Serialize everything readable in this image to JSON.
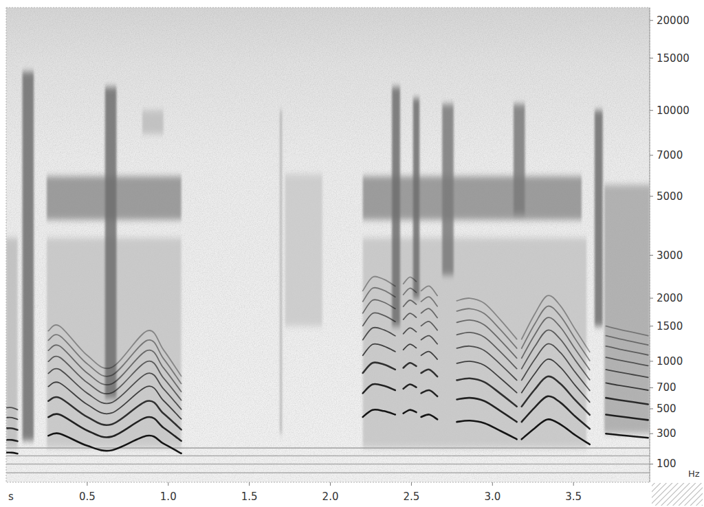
{
  "chart_data": {
    "type": "spectrogram",
    "xlabel": "s",
    "ylabel": "Hz",
    "xlim": [
      0,
      3.97
    ],
    "ylim": [
      0,
      22050
    ],
    "xticks": [
      0.5,
      {
        "value": 1,
        "label": "1.0"
      },
      1.5,
      {
        "value": 2,
        "label": "2.0"
      },
      2.5,
      {
        "value": 3,
        "label": "3.0"
      },
      3.5
    ],
    "yticks": [
      100,
      300,
      500,
      700,
      1000,
      1500,
      2000,
      3000,
      5000,
      7000,
      10000,
      15000,
      20000
    ],
    "color": "#000000",
    "tones": {
      "values": [
        50,
        100,
        150,
        200
      ],
      "color": "#9a9a9a"
    },
    "bursts": {
      "start": [
        0.0,
        0.1,
        0.25,
        0.25,
        0.61,
        0.84,
        1.72,
        1.69,
        2.2,
        2.2,
        2.38,
        2.51,
        2.69,
        3.13,
        3.63,
        3.69
      ],
      "end": [
        0.07,
        0.17,
        1.08,
        1.08,
        0.68,
        0.97,
        1.95,
        1.7,
        3.58,
        3.55,
        2.43,
        2.55,
        2.76,
        3.2,
        3.68,
        3.97
      ],
      "low": [
        200,
        250,
        200,
        4100,
        600,
        8300,
        1500,
        300,
        200,
        4100,
        1500,
        2000,
        2500,
        4300,
        1500,
        300
      ],
      "high": [
        3500,
        13500,
        3500,
        5900,
        12000,
        10000,
        6000,
        10000,
        3500,
        5900,
        12000,
        11000,
        10500,
        10500,
        10000,
        5500
      ],
      "colors": [
        "#bdbdbd",
        "#6e6e6e",
        "#c4c4c4",
        "#8f8f8f",
        "#6e6e6e",
        "#bdbdbd",
        "#c9c9c9",
        "#a0a0a0",
        "#c4c4c4",
        "#8f8f8f",
        "#6e6e6e",
        "#6e6e6e",
        "#7a7a7a",
        "#7a7a7a",
        "#6e6e6e",
        "#a8a8a8"
      ]
    },
    "segments": [
      {
        "x": [
          0.0,
          0.035,
          0.07
        ],
        "harmonics": [
          [
            170,
            170,
            164
          ],
          [
            255,
            255,
            246
          ],
          [
            340,
            340,
            328
          ],
          [
            425,
            425,
            410
          ],
          [
            510,
            510,
            492
          ]
        ]
      },
      {
        "x": [
          0.26,
          0.33,
          0.5,
          0.65,
          0.87,
          0.97,
          1.08
        ],
        "harmonics": [
          [
            285,
            300,
            215,
            185,
            285,
            230,
            165
          ],
          [
            428,
            450,
            323,
            278,
            428,
            345,
            248
          ],
          [
            570,
            600,
            430,
            370,
            570,
            460,
            330
          ],
          [
            713,
            750,
            538,
            463,
            713,
            575,
            413
          ],
          [
            855,
            900,
            645,
            555,
            855,
            690,
            495
          ],
          [
            998,
            1050,
            753,
            648,
            998,
            805,
            578
          ],
          [
            1140,
            1200,
            860,
            740,
            1140,
            920,
            660
          ],
          [
            1283,
            1350,
            968,
            833,
            1283,
            1035,
            743
          ],
          [
            1425,
            1500,
            1075,
            925,
            1425,
            1150,
            825
          ]
        ]
      },
      {
        "x": [
          2.2,
          2.26,
          2.33,
          2.4
        ],
        "harmonics": [
          [
            430,
            490,
            480,
            450
          ],
          [
            645,
            735,
            720,
            675
          ],
          [
            860,
            980,
            960,
            900
          ],
          [
            1075,
            1225,
            1200,
            1125
          ],
          [
            1290,
            1470,
            1440,
            1350
          ],
          [
            1505,
            1715,
            1680,
            1575
          ],
          [
            1720,
            1960,
            1920,
            1800
          ],
          [
            1935,
            2205,
            2160,
            2025
          ],
          [
            2150,
            2450,
            2400,
            2250
          ]
        ]
      },
      {
        "x": [
          2.45,
          2.49,
          2.53
        ],
        "harmonics": [
          [
            460,
            490,
            470
          ],
          [
            690,
            735,
            705
          ],
          [
            920,
            980,
            940
          ],
          [
            1150,
            1225,
            1175
          ],
          [
            1380,
            1470,
            1410
          ],
          [
            1610,
            1715,
            1645
          ],
          [
            1840,
            1960,
            1880
          ],
          [
            2070,
            2205,
            2115
          ],
          [
            2300,
            2450,
            2350
          ]
        ]
      },
      {
        "x": [
          2.56,
          2.61,
          2.66
        ],
        "harmonics": [
          [
            430,
            450,
            410
          ],
          [
            645,
            675,
            615
          ],
          [
            860,
            900,
            820
          ],
          [
            1075,
            1125,
            1025
          ],
          [
            1290,
            1350,
            1230
          ],
          [
            1505,
            1575,
            1435
          ],
          [
            1720,
            1800,
            1640
          ],
          [
            1935,
            2025,
            1845
          ],
          [
            2150,
            2250,
            2050
          ]
        ]
      },
      {
        "x": [
          2.78,
          2.86,
          2.95,
          3.05,
          3.15
        ],
        "harmonics": [
          [
            390,
            400,
            380,
            320,
            260
          ],
          [
            585,
            600,
            570,
            480,
            390
          ],
          [
            780,
            800,
            760,
            640,
            520
          ],
          [
            975,
            1000,
            950,
            800,
            650
          ],
          [
            1170,
            1200,
            1140,
            960,
            780
          ],
          [
            1365,
            1400,
            1330,
            1120,
            910
          ],
          [
            1560,
            1600,
            1520,
            1280,
            1040
          ],
          [
            1755,
            1800,
            1710,
            1440,
            1170
          ],
          [
            1950,
            2000,
            1900,
            1600,
            1300
          ]
        ]
      },
      {
        "x": [
          3.18,
          3.26,
          3.34,
          3.42,
          3.51,
          3.6
        ],
        "harmonics": [
          [
            260,
            340,
            410,
            370,
            290,
            224
          ],
          [
            390,
            510,
            615,
            555,
            435,
            336
          ],
          [
            520,
            680,
            820,
            740,
            580,
            448
          ],
          [
            650,
            850,
            1025,
            925,
            725,
            560
          ],
          [
            780,
            1020,
            1230,
            1110,
            870,
            672
          ],
          [
            910,
            1190,
            1435,
            1295,
            1015,
            784
          ],
          [
            1040,
            1360,
            1640,
            1480,
            1160,
            896
          ],
          [
            1170,
            1530,
            1845,
            1665,
            1305,
            1008
          ],
          [
            1300,
            1700,
            2050,
            1850,
            1450,
            1120
          ]
        ]
      },
      {
        "x": [
          3.7,
          3.78,
          3.87,
          3.96
        ],
        "harmonics": [
          [
            300,
            290,
            280,
            270
          ],
          [
            450,
            435,
            420,
            405
          ],
          [
            600,
            580,
            560,
            540
          ],
          [
            750,
            725,
            700,
            675
          ],
          [
            900,
            870,
            840,
            810
          ],
          [
            1050,
            1015,
            980,
            945
          ],
          [
            1200,
            1160,
            1120,
            1080
          ],
          [
            1350,
            1305,
            1260,
            1215
          ],
          [
            1500,
            1450,
            1400,
            1350
          ]
        ]
      }
    ]
  }
}
